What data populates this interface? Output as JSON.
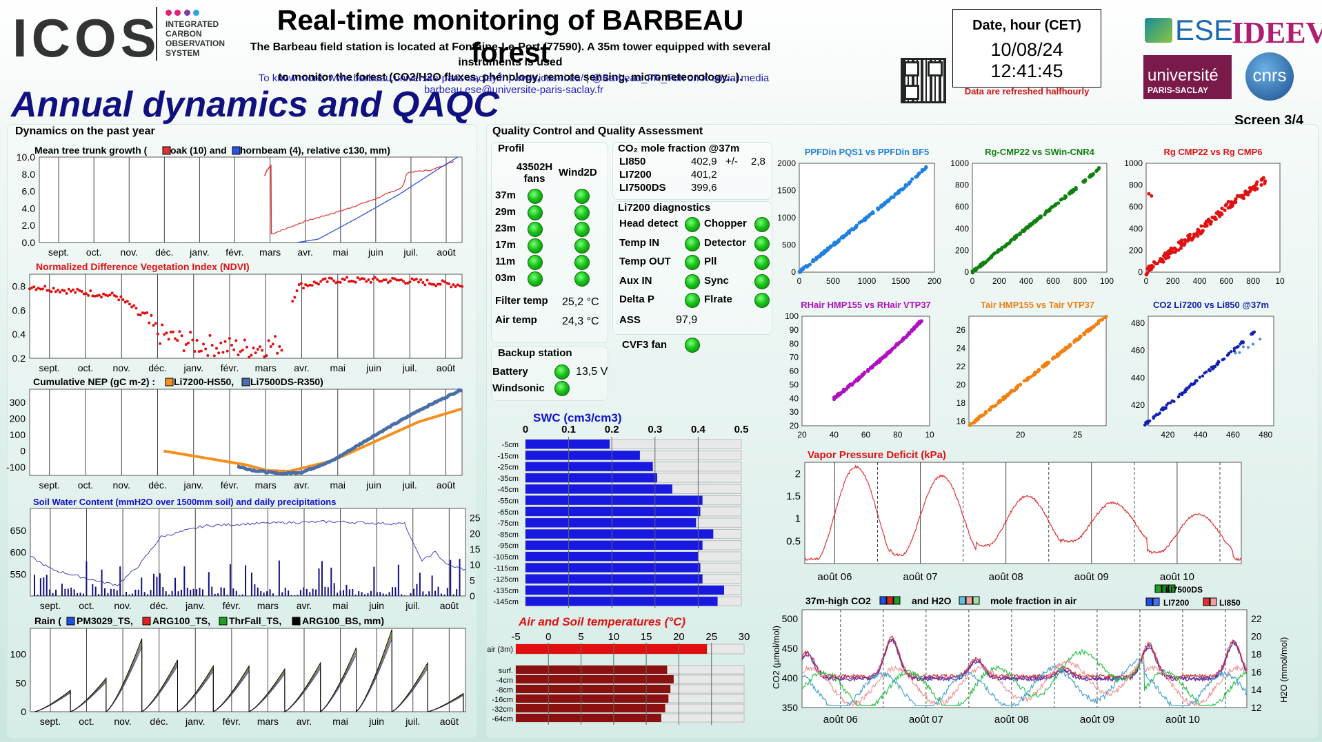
{
  "header": {
    "icos_logo": "ICOS",
    "icos_sub": [
      "INTEGRATED",
      "CARBON",
      "OBSERVATION",
      "SYSTEM"
    ],
    "title": "Real-time monitoring of BARBEAU forest",
    "desc1": "The Barbeau field station is located at Fontaine-Le-Port (77590). A 35m tower equipped with several instruments is used",
    "desc2": "to monitor the forest (CO2/H2O fluxes, phénology, remote sensing, micrometeorology...).",
    "link1": "To know more: www.barbeau.universite-paris-saclay.fr | www.icos-ri.eu/ | @Barbeau_FR_Fon on X social media",
    "link2": "barbeau.ese@universite-paris-saclay.fr",
    "date_label": "Date, hour (CET)",
    "date_value": "10/08/24 12:41:45",
    "refresh_note": "Data are refreshed halfhourly",
    "logo_ese": "ESE",
    "logo_ideev": "IDEEV",
    "logo_ups1": "université",
    "logo_ups2": "PARIS-SACLAY",
    "logo_cnrs": "cnrs"
  },
  "page_title": "Annual dynamics and QAQC",
  "screen": "Screen 3/4",
  "colors": {
    "oak": "#e03030",
    "hornbeam": "#3050e0",
    "li7200": "#f39020",
    "li7500": "#4a6ea8",
    "ndvi": "#e01010",
    "swc": "#4040c0",
    "green_led": "#19c419",
    "swc_bar": "#1818e0",
    "temp_bar": "#e01010",
    "soil_bar": "#8b1010"
  },
  "left": {
    "section": "Dynamics on the past year",
    "months": [
      "sept.",
      "oct.",
      "nov.",
      "déc.",
      "janv.",
      "févr.",
      "mars",
      "avr.",
      "mai",
      "juin",
      "juil.",
      "août"
    ],
    "c1_title_a": "Mean tree trunk growth (",
    "c1_oak": "oak (10) and",
    "c1_horn": "hornbeam (4), relative c130, mm)",
    "c2_title": "Normalized Difference Vegetation Index (NDVI)",
    "c3_title_a": "Cumulative NEP (gC m-2) :",
    "c3_li7200": "Li7200-HS50,",
    "c3_li7500": "Li7500DS-R350)",
    "c4_title": "Soil Water Content (mmH2O over 1500mm soil) and daily precipitations",
    "c5_title_a": "Rain (",
    "c5_pm": "PM3029_TS,",
    "c5_arg": "ARG100_TS,",
    "c5_thr": "ThrFall_TS,",
    "c5_argbs": "ARG100_BS, mm)"
  },
  "qc": {
    "section": "Quality Control and Quality Assessment",
    "profil_title": "Profil",
    "col1": "43502H fans",
    "col2": "Wind2D",
    "levels": [
      "37m",
      "29m",
      "23m",
      "17m",
      "11m",
      "03m"
    ],
    "filter_label": "Filter temp",
    "filter_value": "25,2 °C",
    "air_label": "Air temp",
    "air_value": "24,3 °C",
    "backup_title": "Backup station",
    "battery_label": "Battery",
    "battery_value": "13,5 V",
    "windsonic_label": "Windsonic",
    "co2_title": "CO₂ mole fraction @37m",
    "co2_rows": [
      {
        "name": "LI850",
        "value": "402,9",
        "extra": "+/-",
        "sd": "2,8"
      },
      {
        "name": "LI7200",
        "value": "401,2",
        "extra": "",
        "sd": ""
      },
      {
        "name": "LI7500DS",
        "value": "399,6",
        "extra": "",
        "sd": ""
      }
    ],
    "diag_title": "Li7200 diagnostics",
    "diag_left": [
      "Head detect",
      "Temp IN",
      "Temp OUT",
      "Aux IN",
      "Delta P"
    ],
    "diag_right": [
      "Chopper",
      "Detector",
      "Pll",
      "Sync",
      "Flrate"
    ],
    "ass_label": "ASS",
    "ass_value": "97,9",
    "cvf_label": "CVF3 fan"
  },
  "swc": {
    "title": "SWC (cm3/cm3)",
    "ticks": [
      "0",
      "0.1",
      "0.2",
      "0.3",
      "0.4",
      "0.5"
    ],
    "depths": [
      "-5cm",
      "-15cm",
      "-25cm",
      "-35cm",
      "-45cm",
      "-55cm",
      "-65cm",
      "-75cm",
      "-85cm",
      "-95cm",
      "-105cm",
      "-115cm",
      "-125cm",
      "-135cm",
      "-145cm"
    ],
    "values": [
      0.195,
      0.265,
      0.295,
      0.305,
      0.34,
      0.41,
      0.405,
      0.395,
      0.435,
      0.41,
      0.4,
      0.405,
      0.41,
      0.46,
      0.445
    ]
  },
  "temps": {
    "title": "Air and Soil temperatures (°C)",
    "ticks": [
      "-5",
      "0",
      "5",
      "10",
      "15",
      "20",
      "25",
      "30"
    ],
    "air_label": "air (3m)",
    "air_value": 24.3,
    "soil_labels": [
      "surf.",
      "-4cm",
      "-8cm",
      "-16cm",
      "-32cm",
      "-64cm"
    ],
    "soil_values": [
      18.2,
      19.2,
      18.7,
      18.4,
      17.9,
      17.3
    ]
  },
  "scatters": [
    {
      "title": "PPFDin PQS1 vs PPFDin BF5",
      "color": "#2080e0",
      "ticks_x": [
        "0",
        "500",
        "1000",
        "1500",
        "200"
      ],
      "ticks_y": [
        "0",
        "500",
        "1000",
        "1500",
        "2000"
      ]
    },
    {
      "title": "Rg-CMP22 vs SWin-CNR4",
      "color": "#108010",
      "ticks_x": [
        "0",
        "200",
        "400",
        "600",
        "800",
        "100"
      ],
      "ticks_y": [
        "0",
        "200",
        "400",
        "600",
        "800",
        "1000"
      ]
    },
    {
      "title": "Rg CMP22 vs Rg CMP6",
      "color": "#e01010",
      "ticks_x": [
        "0",
        "200",
        "400",
        "600",
        "800",
        "10"
      ],
      "ticks_y": [
        "0",
        "200",
        "400",
        "600",
        "800",
        "1000"
      ]
    },
    {
      "title": "RHair HMP155 vs RHair VTP37",
      "color": "#b010c0",
      "ticks_x": [
        "20",
        "40",
        "60",
        "80",
        "10"
      ],
      "ticks_y": [
        "20",
        "30",
        "40",
        "50",
        "60",
        "70",
        "80",
        "90",
        "100"
      ]
    },
    {
      "title": "Tair HMP155 vs Tair VTP37",
      "color": "#f08010",
      "ticks_x": [
        "20",
        "25"
      ],
      "ticks_y": [
        "16",
        "18",
        "20",
        "22",
        "24",
        "26"
      ]
    },
    {
      "title": "CO2 Li7200 vs  Li850 @37m",
      "color": "#1020b0",
      "ticks_x": [
        "420",
        "440",
        "460",
        "480"
      ],
      "ticks_y": [
        "420",
        "440",
        "460",
        "480"
      ]
    }
  ],
  "vpd": {
    "title": "Vapor Pressure Deficit (kPa)",
    "days": [
      "août 06",
      "août 07",
      "août 08",
      "août 09",
      "août 10"
    ],
    "ticks_y": [
      "0.5",
      "1",
      "1.5",
      "2"
    ]
  },
  "co2h2o": {
    "title_a": "37m-high CO2",
    "title_b": "and H2O",
    "title_c": "mole fraction in air",
    "leg_li7500": "LI7500DS",
    "leg_li7200": "LI7200",
    "leg_li850": "LI850",
    "days": [
      "août 06",
      "août 07",
      "août 08",
      "août 09",
      "août 10"
    ],
    "ylabel": "CO2 (µmol/mol)",
    "y2label": "H2O  (mmol/mol)",
    "ticks_y": [
      "350",
      "400",
      "450",
      "500"
    ],
    "ticks_y2": [
      "12",
      "14",
      "16",
      "18",
      "20",
      "22"
    ]
  },
  "chart_data": [
    {
      "type": "line",
      "title": "Mean tree trunk growth (oak (10) and hornbeam (4), relative c130, mm)",
      "ylim": [
        0,
        10
      ],
      "series": [
        {
          "name": "oak (10)",
          "x": [
            "avr.",
            "avr.",
            "mai",
            "juin",
            "juil.",
            "août"
          ],
          "values": [
            8.5,
            0.9,
            2.8,
            5.0,
            6.9,
            9.5
          ]
        },
        {
          "name": "hornbeam (4)",
          "x": [
            "avr.",
            "mai",
            "juin",
            "juil.",
            "août"
          ],
          "values": [
            0,
            0.4,
            3.2,
            6.4,
            10
          ]
        }
      ]
    },
    {
      "type": "scatter",
      "title": "Normalized Difference Vegetation Index (NDVI)",
      "ylim": [
        0.2,
        0.9
      ],
      "series": [
        {
          "name": "NDVI",
          "x": [
            "sept.",
            "oct.",
            "nov.",
            "déc.",
            "janv.",
            "févr.",
            "mars",
            "avr.",
            "mai",
            "juin",
            "juil.",
            "août"
          ],
          "values": [
            0.79,
            0.75,
            0.62,
            0.38,
            0.3,
            0.3,
            0.31,
            0.35,
            0.83,
            0.86,
            0.85,
            0.82
          ]
        }
      ]
    },
    {
      "type": "line",
      "title": "Cumulative NEP (gC m-2)",
      "ylim": [
        -150,
        380
      ],
      "series": [
        {
          "name": "Li7200-HS50",
          "x": [
            "janv.",
            "févr.",
            "mars",
            "avr.",
            "mai",
            "juin",
            "juil.",
            "août"
          ],
          "values": [
            0,
            -40,
            -80,
            -120,
            -110,
            10,
            150,
            260
          ]
        },
        {
          "name": "Li7500DS-R350",
          "x": [
            "mars",
            "avr.",
            "mai",
            "juin",
            "juil.",
            "août"
          ],
          "values": [
            -90,
            -135,
            -100,
            40,
            220,
            380
          ]
        }
      ]
    },
    {
      "type": "line",
      "title": "Soil Water Content (mmH2O over 1500mm soil) and daily precipitations",
      "ylim": [
        500,
        700
      ],
      "series": [
        {
          "name": "SWC",
          "x": [
            "sept.",
            "oct.",
            "nov.",
            "déc.",
            "janv.",
            "févr.",
            "mars",
            "avr.",
            "mai",
            "juin",
            "juil.",
            "août"
          ],
          "values": [
            590,
            545,
            525,
            630,
            655,
            665,
            665,
            667,
            668,
            670,
            665,
            565
          ]
        }
      ]
    },
    {
      "type": "line",
      "title": "Rain (PM3029_TS, ARG100_TS, ThrFall_TS, ARG100_BS, mm)",
      "ylim": [
        0,
        140
      ],
      "series": [
        {
          "name": "ARG100_TS",
          "x": [
            "sept.",
            "oct.",
            "nov.",
            "déc.",
            "janv.",
            "févr.",
            "mars",
            "avr.",
            "mai",
            "juin",
            "juil.",
            "août"
          ],
          "values": [
            35,
            55,
            120,
            85,
            75,
            75,
            70,
            80,
            105,
            135,
            80,
            30
          ]
        }
      ]
    },
    {
      "type": "bar",
      "title": "SWC (cm3/cm3)",
      "categories": [
        "-5cm",
        "-15cm",
        "-25cm",
        "-35cm",
        "-45cm",
        "-55cm",
        "-65cm",
        "-75cm",
        "-85cm",
        "-95cm",
        "-105cm",
        "-115cm",
        "-125cm",
        "-135cm",
        "-145cm"
      ],
      "values": [
        0.195,
        0.265,
        0.295,
        0.305,
        0.34,
        0.41,
        0.405,
        0.395,
        0.435,
        0.41,
        0.4,
        0.405,
        0.41,
        0.46,
        0.445
      ],
      "xlim": [
        0,
        0.5
      ]
    },
    {
      "type": "bar",
      "title": "Air and Soil temperatures (°C)",
      "categories": [
        "air (3m)",
        "surf.",
        "-4cm",
        "-8cm",
        "-16cm",
        "-32cm",
        "-64cm"
      ],
      "values": [
        24.3,
        18.2,
        19.2,
        18.7,
        18.4,
        17.9,
        17.3
      ],
      "xlim": [
        -5,
        30
      ]
    },
    {
      "type": "scatter",
      "title": "PPFDin PQS1 vs PPFDin BF5",
      "xlim": [
        0,
        2000
      ],
      "ylim": [
        0,
        2000
      ],
      "series": [
        {
          "name": "",
          "x": [
            0,
            500,
            1000,
            1500,
            1900
          ],
          "values": [
            0,
            500,
            1000,
            1500,
            1950
          ]
        }
      ]
    },
    {
      "type": "scatter",
      "title": "Rg-CMP22 vs SWin-CNR4",
      "xlim": [
        0,
        1000
      ],
      "ylim": [
        0,
        1000
      ],
      "series": [
        {
          "name": "",
          "x": [
            0,
            200,
            400,
            600,
            800,
            950
          ],
          "values": [
            0,
            200,
            400,
            600,
            800,
            960
          ]
        }
      ]
    },
    {
      "type": "scatter",
      "title": "Rg CMP22 vs Rg CMP6",
      "xlim": [
        0,
        1000
      ],
      "ylim": [
        0,
        1000
      ],
      "series": [
        {
          "name": "",
          "x": [
            0,
            200,
            400,
            600,
            800,
            900
          ],
          "values": [
            0,
            200,
            380,
            600,
            770,
            860
          ]
        }
      ]
    },
    {
      "type": "scatter",
      "title": "RHair HMP155 vs RHair VTP37",
      "xlim": [
        20,
        100
      ],
      "ylim": [
        20,
        100
      ],
      "series": [
        {
          "name": "",
          "x": [
            40,
            55,
            70,
            85,
            95
          ],
          "values": [
            40,
            54,
            69,
            85,
            97
          ]
        }
      ]
    },
    {
      "type": "scatter",
      "title": "Tair HMP155 vs Tair VTP37",
      "xlim": [
        15,
        28
      ],
      "ylim": [
        15,
        28
      ],
      "series": [
        {
          "name": "",
          "x": [
            15.5,
            18,
            21,
            24,
            27.5
          ],
          "values": [
            15.5,
            18,
            21,
            24,
            27.5
          ]
        }
      ]
    },
    {
      "type": "scatter",
      "title": "CO2 Li7200 vs  Li850 @37m",
      "xlim": [
        400,
        485
      ],
      "ylim": [
        400,
        485
      ],
      "series": [
        {
          "name": "",
          "x": [
            405,
            420,
            440,
            455,
            475
          ],
          "values": [
            405,
            420,
            440,
            455,
            475
          ]
        }
      ]
    },
    {
      "type": "line",
      "title": "Vapor Pressure Deficit (kPa)",
      "ylim": [
        0,
        2.2
      ],
      "series": [
        {
          "name": "VPD",
          "x": [
            "août 06",
            "août 07",
            "août 08",
            "août 09",
            "août 10"
          ],
          "values": [
            0.3,
            2.1,
            1.0,
            1.6,
            1.2
          ]
        }
      ]
    },
    {
      "type": "line",
      "title": "37m-high CO2 and H2O mole fraction in air",
      "ylim": [
        350,
        520
      ],
      "series": [
        {
          "name": "LI7200",
          "x": [
            "août 06",
            "août 07",
            "août 08",
            "août 09",
            "août 10"
          ],
          "values": [
            400,
            440,
            450,
            430,
            445
          ]
        },
        {
          "name": "LI850",
          "x": [
            "août 06",
            "août 07",
            "août 08",
            "août 09",
            "août 10"
          ],
          "values": [
            405,
            445,
            455,
            432,
            448
          ]
        },
        {
          "name": "LI7500DS",
          "x": [
            "août 06",
            "août 07",
            "août 08",
            "août 09",
            "août 10"
          ],
          "values": [
            398,
            438,
            448,
            428,
            442
          ]
        }
      ]
    }
  ]
}
